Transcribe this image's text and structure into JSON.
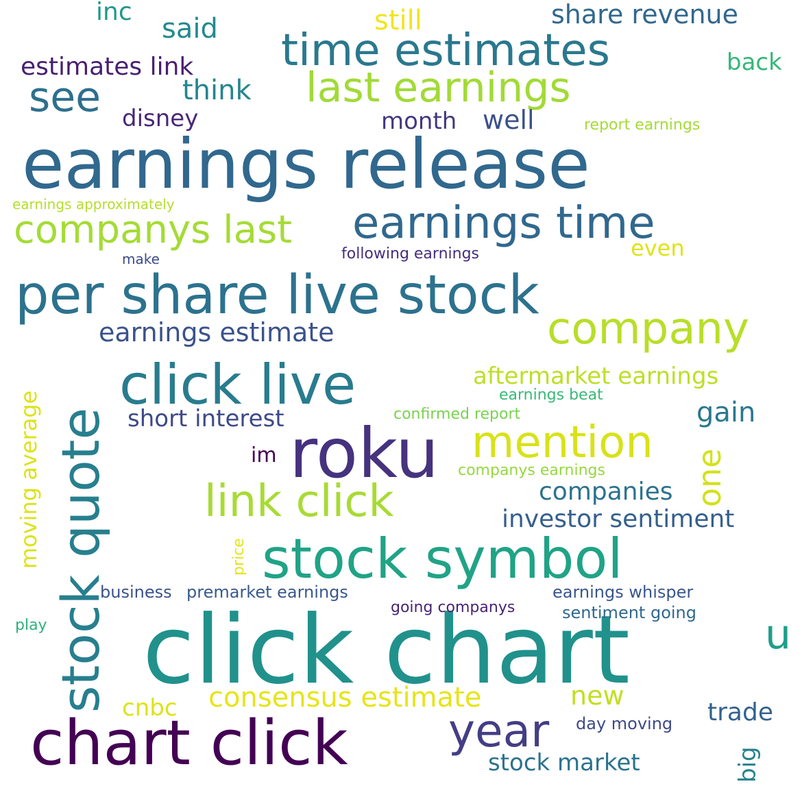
{
  "words": [
    {
      "text": "earnings release",
      "color": "#31688e"
    },
    {
      "text": "click chart",
      "color": "#21918c"
    },
    {
      "text": "per share live stock",
      "color": "#2c728e"
    },
    {
      "text": "chart click",
      "color": "#440154"
    },
    {
      "text": "roku",
      "color": "#46327e"
    },
    {
      "text": "click live",
      "color": "#287c8e"
    },
    {
      "text": "stock symbol",
      "color": "#20a386"
    },
    {
      "text": "stock quote",
      "color": "#277f8e"
    },
    {
      "text": "earnings time",
      "color": "#31688e"
    },
    {
      "text": "time estimates",
      "color": "#2a788e"
    },
    {
      "text": "last earnings",
      "color": "#a2da37"
    },
    {
      "text": "companys last",
      "color": "#a5db36"
    },
    {
      "text": "company",
      "color": "#b8de29"
    },
    {
      "text": "mention",
      "color": "#d8e219"
    },
    {
      "text": "link click",
      "color": "#a8db34"
    },
    {
      "text": "year",
      "color": "#433e85"
    },
    {
      "text": "see",
      "color": "#2d708e"
    },
    {
      "text": "estimates link",
      "color": "#481f70"
    },
    {
      "text": "earnings estimate",
      "color": "#3b528b"
    },
    {
      "text": "aftermarket earnings",
      "color": "#bddf26"
    },
    {
      "text": "consensus estimate",
      "color": "#e7e419"
    },
    {
      "text": "short interest",
      "color": "#3e4989"
    },
    {
      "text": "gain",
      "color": "#2a788e"
    },
    {
      "text": "companies",
      "color": "#2c728e"
    },
    {
      "text": "investor sentiment",
      "color": "#35608d"
    },
    {
      "text": "one",
      "color": "#d2e21b"
    },
    {
      "text": "moving average",
      "color": "#dde318"
    },
    {
      "text": "stock market",
      "color": "#2c728e"
    },
    {
      "text": "share revenue",
      "color": "#31688e"
    },
    {
      "text": "think",
      "color": "#25858e"
    },
    {
      "text": "said",
      "color": "#238a8d"
    },
    {
      "text": "still",
      "color": "#f1e51d"
    },
    {
      "text": "inc",
      "color": "#1f988b"
    },
    {
      "text": "back",
      "color": "#35b779"
    },
    {
      "text": "disney",
      "color": "#482878"
    },
    {
      "text": "month",
      "color": "#453781"
    },
    {
      "text": "well",
      "color": "#3b528b"
    },
    {
      "text": "report earnings",
      "color": "#a5db36"
    },
    {
      "text": "earnings approximately",
      "color": "#b5de2b"
    },
    {
      "text": "even",
      "color": "#dfe318"
    },
    {
      "text": "make",
      "color": "#3e4a89"
    },
    {
      "text": "following earnings",
      "color": "#472d7b"
    },
    {
      "text": "earnings beat",
      "color": "#38b977"
    },
    {
      "text": "confirmed report",
      "color": "#7ad151"
    },
    {
      "text": "companys earnings",
      "color": "#95d840"
    },
    {
      "text": "im",
      "color": "#440154"
    },
    {
      "text": "price",
      "color": "#e5e419"
    },
    {
      "text": "business",
      "color": "#3b528b"
    },
    {
      "text": "premarket earnings",
      "color": "#38598c"
    },
    {
      "text": "earnings whisper",
      "color": "#39568c"
    },
    {
      "text": "going companys",
      "color": "#482475"
    },
    {
      "text": "sentiment going",
      "color": "#31688e"
    },
    {
      "text": "play",
      "color": "#2db27d"
    },
    {
      "text": "u",
      "color": "#1f9e89"
    },
    {
      "text": "cnbc",
      "color": "#dde318"
    },
    {
      "text": "new",
      "color": "#c2df23"
    },
    {
      "text": "trade",
      "color": "#33638d"
    },
    {
      "text": "day moving",
      "color": "#3e4a89"
    },
    {
      "text": "big",
      "color": "#26828e"
    }
  ]
}
